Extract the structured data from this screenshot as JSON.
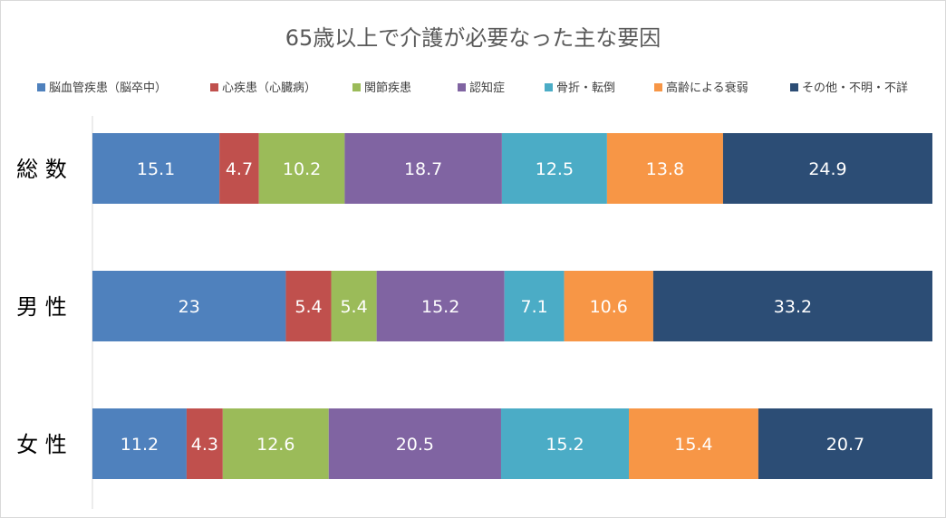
{
  "chart_data": {
    "type": "bar",
    "orientation": "horizontal",
    "stacked": "percent",
    "title": "65歳以上で介護が必要なった主な要因",
    "categories": [
      "総 数",
      "男 性",
      "女 性"
    ],
    "series": [
      {
        "name": "脳血管疾患（脳卒中）",
        "color": "#4f81bd",
        "values": [
          15.1,
          23,
          11.2
        ]
      },
      {
        "name": "心疾患（心臓病）",
        "color": "#c0504d",
        "values": [
          4.7,
          5.4,
          4.3
        ]
      },
      {
        "name": "関節疾患",
        "color": "#9bbb59",
        "values": [
          10.2,
          5.4,
          12.6
        ]
      },
      {
        "name": "認知症",
        "color": "#8064a2",
        "values": [
          18.7,
          15.2,
          20.5
        ]
      },
      {
        "name": "骨折・転倒",
        "color": "#4bacc6",
        "values": [
          12.5,
          7.1,
          15.2
        ]
      },
      {
        "name": "高齢による衰弱",
        "color": "#f79646",
        "values": [
          13.8,
          10.6,
          15.4
        ]
      },
      {
        "name": "その他・不明・不詳",
        "color": "#2c4d75",
        "values": [
          24.9,
          33.2,
          20.7
        ]
      }
    ],
    "legend_position": "top",
    "grid": false,
    "data_labels": true
  }
}
